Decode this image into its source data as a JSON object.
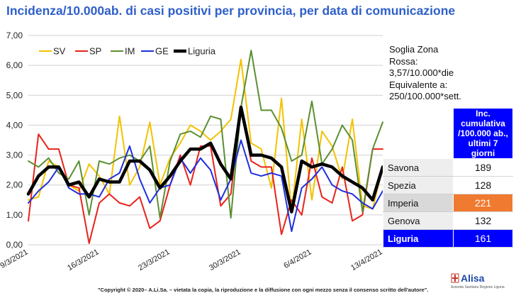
{
  "chart_data": {
    "type": "line",
    "title": "Incidenza/10.000ab. di casi positivi per provincia, per data di comunicazione",
    "ylim": [
      0,
      7
    ],
    "yticks": [
      "0,00",
      "1,00",
      "2,00",
      "3,00",
      "4,00",
      "5,00",
      "6,00",
      "7,00"
    ],
    "x": [
      "9/3/2021",
      "10/3/2021",
      "11/3/2021",
      "12/3/2021",
      "13/3/2021",
      "14/3/2021",
      "15/3/2021",
      "16/3/2021",
      "17/3/2021",
      "18/3/2021",
      "19/3/2021",
      "20/3/2021",
      "21/3/2021",
      "22/3/2021",
      "23/3/2021",
      "24/3/2021",
      "25/3/2021",
      "26/3/2021",
      "27/3/2021",
      "28/3/2021",
      "29/3/2021",
      "30/3/2021",
      "31/3/2021",
      "1/4/2021",
      "2/4/2021",
      "3/4/2021",
      "4/4/2021",
      "5/4/2021",
      "6/4/2021",
      "7/4/2021",
      "8/4/2021",
      "9/4/2021",
      "10/4/2021",
      "11/4/2021",
      "12/4/2021",
      "13/4/2021"
    ],
    "xtick_labels": [
      "9/3/2021",
      "16/3/2021",
      "23/3/2021",
      "30/3/2021",
      "6/4/2021",
      "13/4/2021"
    ],
    "legend_position": "top-left",
    "series": [
      {
        "name": "SV",
        "color": "#f2c200",
        "width": 2,
        "values": [
          1.5,
          1.6,
          2.8,
          2.6,
          2.0,
          1.8,
          2.7,
          2.3,
          1.7,
          4.3,
          2.0,
          2.6,
          4.1,
          2.0,
          2.9,
          3.4,
          4.0,
          3.8,
          3.5,
          3.8,
          4.2,
          6.2,
          3.4,
          3.2,
          1.9,
          4.9,
          1.1,
          4.2,
          1.5,
          3.8,
          3.3,
          2.2,
          4.2,
          1.3,
          1.2,
          2.6
        ]
      },
      {
        "name": "SP",
        "color": "#e8231a",
        "width": 2,
        "values": [
          0.8,
          3.7,
          3.2,
          3.2,
          2.0,
          1.9,
          0.05,
          1.4,
          1.7,
          1.4,
          1.3,
          1.6,
          0.55,
          0.8,
          2.0,
          3.0,
          2.0,
          3.3,
          3.3,
          1.3,
          1.7,
          4.6,
          2.8,
          2.6,
          2.6,
          0.35,
          1.5,
          1.0,
          2.9,
          1.6,
          1.4,
          2.6,
          0.8,
          1.0,
          3.2,
          3.2
        ]
      },
      {
        "name": "IM",
        "color": "#5b8f32",
        "width": 2,
        "values": [
          2.8,
          2.6,
          2.9,
          2.4,
          2.2,
          2.8,
          1.0,
          2.8,
          2.7,
          2.9,
          3.0,
          2.8,
          3.3,
          0.9,
          2.8,
          3.7,
          3.8,
          3.6,
          4.3,
          4.2,
          0.9,
          4.6,
          6.5,
          4.5,
          4.5,
          3.9,
          2.8,
          3.0,
          4.8,
          2.7,
          3.2,
          4.0,
          3.5,
          1.1,
          3.2,
          4.1
        ]
      },
      {
        "name": "GE",
        "color": "#1f2fe0",
        "width": 2,
        "values": [
          1.4,
          1.8,
          2.1,
          2.6,
          1.9,
          1.7,
          1.7,
          1.6,
          2.2,
          2.4,
          3.3,
          2.2,
          1.4,
          1.9,
          2.0,
          2.9,
          2.4,
          2.9,
          2.5,
          1.5,
          2.2,
          3.5,
          2.4,
          2.3,
          2.4,
          2.3,
          0.45,
          1.9,
          2.2,
          2.6,
          2.0,
          1.8,
          1.7,
          1.4,
          1.2,
          1.8
        ]
      },
      {
        "name": "Liguria",
        "color": "#000000",
        "width": 4.5,
        "values": [
          1.7,
          2.3,
          2.6,
          2.6,
          2.0,
          2.1,
          1.6,
          2.2,
          2.1,
          2.1,
          2.8,
          2.8,
          2.5,
          1.9,
          2.3,
          2.8,
          3.2,
          3.2,
          3.4,
          2.7,
          2.2,
          4.6,
          3.0,
          3.0,
          2.9,
          2.6,
          1.1,
          2.8,
          2.6,
          2.7,
          2.6,
          2.3,
          2.1,
          1.9,
          1.5,
          2.6
        ]
      }
    ]
  },
  "threshold_note": {
    "lines": [
      "Soglia Zona",
      "Rossa:",
      "3,57/10.000*die",
      "Equivalente a:",
      "250/100.000*sett."
    ]
  },
  "table": {
    "header": "Inc. cumulativa /100.000 ab., ultimi 7 giorni",
    "rows": [
      {
        "name": "Savona",
        "value": "189"
      },
      {
        "name": "Spezia",
        "value": "128"
      },
      {
        "name": "Imperia",
        "value": "221"
      },
      {
        "name": "Genova",
        "value": "132"
      },
      {
        "name": "Liguria",
        "value": "161"
      }
    ]
  },
  "footer": "\"Copyright © 2020– A.Li.Sa. – vietata la copia, la riproduzione e la diffusione con ogni mezzo senza il consenso scritto dell'autore\".",
  "logo": {
    "name": "Alisa",
    "subtitle": "Azienda Sanitaria Regione Liguria"
  }
}
